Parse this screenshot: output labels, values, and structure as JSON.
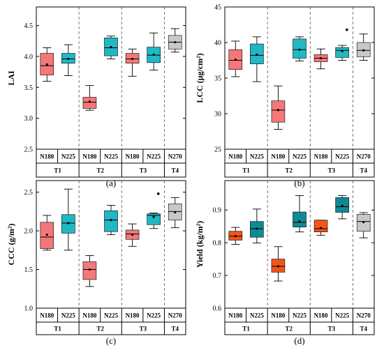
{
  "chart_data": [
    {
      "type": "box",
      "panel": "(a)",
      "ylabel": "LAI",
      "ylim": [
        2.5,
        4.8
      ],
      "yticks": [
        2.5,
        3.0,
        3.5,
        4.0,
        4.5
      ],
      "ytick_labels": [
        "2.5",
        "3.0",
        "3.5",
        "4.0",
        "4.5"
      ],
      "groups": [
        {
          "name": "T1",
          "categories": [
            "N180",
            "N225"
          ]
        },
        {
          "name": "T2",
          "categories": [
            "N180",
            "N225"
          ]
        },
        {
          "name": "T3",
          "categories": [
            "N180",
            "N225"
          ]
        },
        {
          "name": "T4",
          "categories": [
            "N270"
          ]
        }
      ],
      "boxes": [
        {
          "category": "N180",
          "group": "T1",
          "color": "#f4777a",
          "min": 3.6,
          "q1": 3.7,
          "median": 3.85,
          "q3": 4.05,
          "max": 4.14,
          "mean": 3.87
        },
        {
          "category": "N225",
          "group": "T1",
          "color": "#20b8c4",
          "min": 3.69,
          "q1": 3.89,
          "median": 3.96,
          "q3": 4.05,
          "max": 4.19,
          "mean": 3.96
        },
        {
          "category": "N180",
          "group": "T2",
          "color": "#f4777a",
          "min": 3.13,
          "q1": 3.16,
          "median": 3.26,
          "q3": 3.34,
          "max": 3.53,
          "mean": 3.27
        },
        {
          "category": "N225",
          "group": "T2",
          "color": "#20b8c4",
          "min": 3.96,
          "q1": 4.01,
          "median": 4.14,
          "q3": 4.3,
          "max": 4.33,
          "mean": 4.15
        },
        {
          "category": "N180",
          "group": "T3",
          "color": "#f4777a",
          "min": 3.68,
          "q1": 3.89,
          "median": 3.96,
          "q3": 4.05,
          "max": 4.12,
          "mean": 3.96
        },
        {
          "category": "N225",
          "group": "T3",
          "color": "#20b8c4",
          "min": 3.78,
          "q1": 3.9,
          "median": 4.02,
          "q3": 4.15,
          "max": 4.38,
          "mean": 4.03
        },
        {
          "category": "N270",
          "group": "T4",
          "color": "#c8c8c8",
          "min": 4.07,
          "q1": 4.12,
          "median": 4.23,
          "q3": 4.34,
          "max": 4.45,
          "mean": 4.23
        }
      ]
    },
    {
      "type": "box",
      "panel": "(b)",
      "ylabel": "LCC (μg/cm²)",
      "ylim": [
        25,
        45
      ],
      "yticks": [
        25,
        30,
        35,
        40,
        45
      ],
      "ytick_labels": [
        "25",
        "30",
        "35",
        "40",
        "45"
      ],
      "groups": [
        {
          "name": "T1",
          "categories": [
            "N180",
            "N225"
          ]
        },
        {
          "name": "T2",
          "categories": [
            "N180",
            "N225"
          ]
        },
        {
          "name": "T3",
          "categories": [
            "N180",
            "N225"
          ]
        },
        {
          "name": "T4",
          "categories": [
            "N270"
          ]
        }
      ],
      "boxes": [
        {
          "category": "N180",
          "group": "T1",
          "color": "#f4777a",
          "min": 35.2,
          "q1": 36.2,
          "median": 37.5,
          "q3": 39.0,
          "max": 40.2,
          "mean": 37.6
        },
        {
          "category": "N225",
          "group": "T1",
          "color": "#20b8c4",
          "min": 34.5,
          "q1": 37.0,
          "median": 38.2,
          "q3": 39.8,
          "max": 40.8,
          "mean": 38.3
        },
        {
          "category": "N180",
          "group": "T2",
          "color": "#f4777a",
          "min": 27.8,
          "q1": 28.8,
          "median": 30.5,
          "q3": 31.8,
          "max": 33.9,
          "mean": 30.5
        },
        {
          "category": "N225",
          "group": "T2",
          "color": "#20b8c4",
          "min": 37.4,
          "q1": 37.8,
          "median": 39.0,
          "q3": 40.5,
          "max": 40.8,
          "mean": 39.0
        },
        {
          "category": "N180",
          "group": "T3",
          "color": "#f4777a",
          "min": 36.3,
          "q1": 37.3,
          "median": 37.8,
          "q3": 38.3,
          "max": 39.1,
          "mean": 37.8
        },
        {
          "category": "N225",
          "group": "T3",
          "color": "#20b8c4",
          "min": 37.5,
          "q1": 37.9,
          "median": 38.9,
          "q3": 39.3,
          "max": 39.6,
          "mean": 38.8,
          "outliers": [
            41.8
          ]
        },
        {
          "category": "N270",
          "group": "T4",
          "color": "#c8c8c8",
          "min": 37.5,
          "q1": 38.0,
          "median": 38.9,
          "q3": 40.0,
          "max": 41.2,
          "mean": 38.9
        }
      ]
    },
    {
      "type": "box",
      "panel": "(c)",
      "ylabel": "CCC (g/m²)",
      "ylim": [
        1.0,
        2.65
      ],
      "yticks": [
        1.0,
        1.5,
        2.0,
        2.5
      ],
      "ytick_labels": [
        "1.0",
        "1.5",
        "2.0",
        "2.5"
      ],
      "groups": [
        {
          "name": "T1",
          "categories": [
            "N180",
            "N225"
          ]
        },
        {
          "name": "T2",
          "categories": [
            "N180",
            "N225"
          ]
        },
        {
          "name": "T3",
          "categories": [
            "N180",
            "N225"
          ]
        },
        {
          "name": "T4",
          "categories": [
            "N270"
          ]
        }
      ],
      "boxes": [
        {
          "category": "N180",
          "group": "T1",
          "color": "#f4777a",
          "min": 1.75,
          "q1": 1.77,
          "median": 1.92,
          "q3": 2.11,
          "max": 2.2,
          "mean": 1.95
        },
        {
          "category": "N225",
          "group": "T1",
          "color": "#20b8c4",
          "min": 1.75,
          "q1": 1.97,
          "median": 2.1,
          "q3": 2.21,
          "max": 2.54,
          "mean": 2.1
        },
        {
          "category": "N180",
          "group": "T2",
          "color": "#f4777a",
          "min": 1.28,
          "q1": 1.37,
          "median": 1.5,
          "q3": 1.6,
          "max": 1.68,
          "mean": 1.5
        },
        {
          "category": "N225",
          "group": "T2",
          "color": "#20b8c4",
          "min": 1.95,
          "q1": 1.99,
          "median": 2.14,
          "q3": 2.26,
          "max": 2.33,
          "mean": 2.14
        },
        {
          "category": "N180",
          "group": "T3",
          "color": "#f4777a",
          "min": 1.8,
          "q1": 1.89,
          "median": 1.96,
          "q3": 2.01,
          "max": 2.09,
          "mean": 1.95
        },
        {
          "category": "N225",
          "group": "T3",
          "color": "#20b8c4",
          "min": 2.03,
          "q1": 2.08,
          "median": 2.2,
          "q3": 2.22,
          "max": 2.23,
          "mean": 2.18,
          "outliers": [
            2.48
          ]
        },
        {
          "category": "N270",
          "group": "T4",
          "color": "#c8c8c8",
          "min": 2.04,
          "q1": 2.14,
          "median": 2.25,
          "q3": 2.35,
          "max": 2.43,
          "mean": 2.24
        }
      ]
    },
    {
      "type": "box",
      "panel": "(d)",
      "ylabel": "Yield (kg/m²)",
      "ylim": [
        0.6,
        0.99
      ],
      "yticks": [
        0.6,
        0.7,
        0.8,
        0.9
      ],
      "ytick_labels": [
        "0.6",
        "0.7",
        "0.8",
        "0.9"
      ],
      "groups": [
        {
          "name": "T1",
          "categories": [
            "N180",
            "N225"
          ]
        },
        {
          "name": "T2",
          "categories": [
            "N180",
            "N225"
          ]
        },
        {
          "name": "T3",
          "categories": [
            "N180",
            "N225"
          ]
        },
        {
          "name": "T4",
          "categories": [
            "N270"
          ]
        }
      ],
      "boxes": [
        {
          "category": "N180",
          "group": "T1",
          "color": "#f2541c",
          "min": 0.795,
          "q1": 0.808,
          "median": 0.82,
          "q3": 0.835,
          "max": 0.847,
          "mean": 0.82
        },
        {
          "category": "N225",
          "group": "T1",
          "color": "#0f8a93",
          "min": 0.799,
          "q1": 0.817,
          "median": 0.843,
          "q3": 0.865,
          "max": 0.903,
          "mean": 0.843
        },
        {
          "category": "N180",
          "group": "T2",
          "color": "#f2541c",
          "min": 0.683,
          "q1": 0.71,
          "median": 0.728,
          "q3": 0.75,
          "max": 0.788,
          "mean": 0.728
        },
        {
          "category": "N225",
          "group": "T2",
          "color": "#0f8a93",
          "min": 0.833,
          "q1": 0.848,
          "median": 0.862,
          "q3": 0.894,
          "max": 0.944,
          "mean": 0.865
        },
        {
          "category": "N180",
          "group": "T3",
          "color": "#f2541c",
          "min": 0.823,
          "q1": 0.833,
          "median": 0.843,
          "q3": 0.869,
          "max": 0.869,
          "mean": 0.845
        },
        {
          "category": "N225",
          "group": "T3",
          "color": "#0f8a93",
          "min": 0.873,
          "q1": 0.893,
          "median": 0.91,
          "q3": 0.938,
          "max": 0.944,
          "mean": 0.913
        },
        {
          "category": "N270",
          "group": "T4",
          "color": "#c8c8c8",
          "min": 0.815,
          "q1": 0.835,
          "median": 0.865,
          "q3": 0.887,
          "max": 0.892,
          "mean": 0.863
        }
      ]
    }
  ]
}
